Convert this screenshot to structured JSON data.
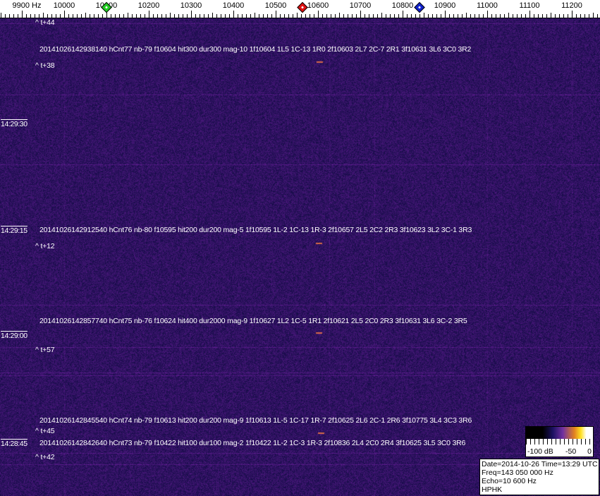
{
  "freq_axis": {
    "unit_label": "9900 Hz",
    "labels": [
      "10000",
      "10100",
      "10200",
      "10300",
      "10400",
      "10500",
      "10600",
      "10700",
      "10800",
      "10900",
      "11000",
      "11100",
      "11200"
    ],
    "markers": [
      {
        "freq": 10100,
        "color": "#22cc22"
      },
      {
        "freq": 10563,
        "color": "#dd1111"
      },
      {
        "freq": 10840,
        "color": "#1122cc"
      }
    ]
  },
  "events": [
    {
      "text": "^ t+44"
    },
    {
      "text": "20141026142938140 hCnt77 nb-79 f10604 hit300 dur300 mag-10 1f10604 1L5 1C-13 1R0 2f10603 2L7 2C-7 2R1 3f10631 3L6 3C0 3R2"
    },
    {
      "text": "^ t+38"
    },
    {
      "text": "20141026142912540 hCnt76 nb-80 f10595 hit200 dur200 mag-5 1f10595 1L-2 1C-13 1R-3 2f10657 2L5 2C2 2R3 3f10623 3L2 3C-1 3R3"
    },
    {
      "text": "^ t+12"
    },
    {
      "text": "20141026142857740 hCnt75 nb-76 f10624 hit400 dur2000 mag-9 1f10627 1L2 1C-5 1R1 2f10621 2L5 2C0 2R3 3f10631 3L6 3C-2 3R5"
    },
    {
      "text": "^ t+57"
    },
    {
      "text": "20141026142845540 hCnt74 nb-79 f10613 hit200 dur200 mag-9 1f10613 1L-5 1C-17 1R-7 2f10625 2L6 2C-1 2R6 3f10775 3L4 3C3 3R6"
    },
    {
      "text": "^ t+45"
    },
    {
      "text": "20141026142842640 hCnt73 nb-79 f10422 hit100 dur100 mag-2 1f10422 1L-2 1C-3 1R-3 2f10836 2L4 2C0 2R4 3f10625 3L5 3C0 3R6"
    },
    {
      "text": "^ t+42"
    }
  ],
  "times": [
    "14:29:30",
    "14:29:15",
    "14:29:00",
    "14:28:45"
  ],
  "legend": {
    "min": "-100 dB",
    "mid": "-50",
    "max": "0"
  },
  "info": {
    "line1": "Date=2014-10-26 Time=13:29 UTC",
    "line2": "Freq=143 050 000 Hz",
    "line3": "Echo=10 600 Hz",
    "line4": "HPHK"
  },
  "colors": {
    "background": "#14105a",
    "signal": "#ff8040"
  }
}
